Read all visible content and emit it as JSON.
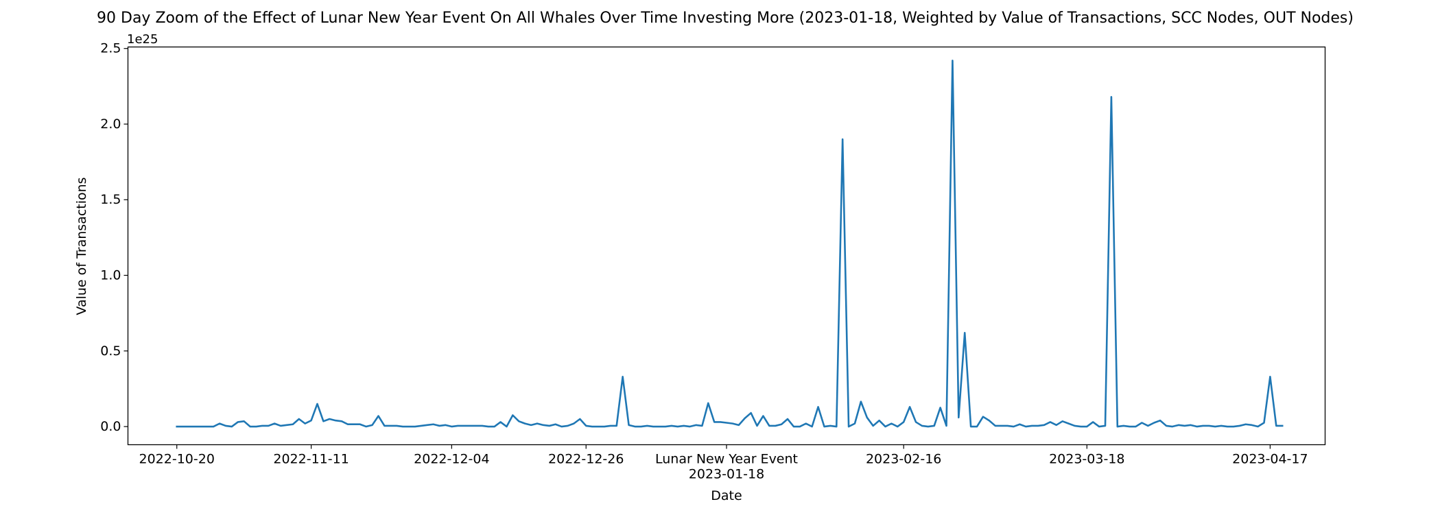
{
  "chart_data": {
    "type": "line",
    "title": "90 Day Zoom of the Effect of Lunar New Year Event On All Whales Over Time Investing More (2023-01-18, Weighted by Value of Transactions, SCC Nodes, OUT Nodes)",
    "xlabel": "Date",
    "ylabel": "Value of Transactions",
    "y_offset_label": "1e25",
    "y_scale": 1e+25,
    "xlim": [
      "2022-10-12",
      "2023-04-26"
    ],
    "ylim": [
      -0.12,
      2.51
    ],
    "x_ticks": [
      {
        "date": "2022-10-20",
        "label": "2022-10-20"
      },
      {
        "date": "2022-11-11",
        "label": "2022-11-11"
      },
      {
        "date": "2022-12-04",
        "label": "2022-12-04"
      },
      {
        "date": "2022-12-26",
        "label": "2022-12-26"
      },
      {
        "date": "2023-01-18",
        "label": "Lunar New Year Event",
        "sublabel": "2023-01-18"
      },
      {
        "date": "2023-02-16",
        "label": "2023-02-16"
      },
      {
        "date": "2023-03-18",
        "label": "2023-03-18"
      },
      {
        "date": "2023-04-17",
        "label": "2023-04-17"
      }
    ],
    "y_ticks": [
      0.0,
      0.5,
      1.0,
      1.5,
      2.0,
      2.5
    ],
    "y_tick_labels": [
      "0.0",
      "0.5",
      "1.0",
      "1.5",
      "2.0",
      "2.5"
    ],
    "grid": false,
    "color": "#1f77b4",
    "series": [
      {
        "start_date": "2022-10-20",
        "values": [
          0.0,
          0.0,
          0.0,
          0.0,
          0.0,
          0.0,
          0.0,
          0.02,
          0.005,
          0.0,
          0.03,
          0.035,
          0.0,
          0.0,
          0.005,
          0.005,
          0.02,
          0.005,
          0.01,
          0.015,
          0.05,
          0.02,
          0.04,
          0.15,
          0.035,
          0.05,
          0.04,
          0.035,
          0.015,
          0.015,
          0.015,
          0.0,
          0.01,
          0.07,
          0.005,
          0.005,
          0.005,
          0.0,
          0.0,
          0.0,
          0.005,
          0.01,
          0.015,
          0.005,
          0.01,
          0.0,
          0.005,
          0.005,
          0.005,
          0.005,
          0.005,
          0.0,
          0.0,
          0.03,
          0.0,
          0.075,
          0.035,
          0.02,
          0.01,
          0.02,
          0.01,
          0.005,
          0.015,
          0.0,
          0.005,
          0.02,
          0.05,
          0.005,
          0.0,
          0.0,
          0.0,
          0.005,
          0.005,
          0.33,
          0.01,
          0.0,
          0.0,
          0.005,
          0.0,
          0.0,
          0.0,
          0.005,
          0.0,
          0.005,
          0.0,
          0.01,
          0.005,
          0.155,
          0.03,
          0.03,
          0.025,
          0.02,
          0.01,
          0.055,
          0.09,
          0.005,
          0.07,
          0.005,
          0.005,
          0.015,
          0.05,
          0.0,
          0.0,
          0.02,
          0.0,
          0.13,
          0.0,
          0.005,
          0.0,
          1.9,
          0.0,
          0.02,
          0.165,
          0.06,
          0.005,
          0.04,
          0.0,
          0.02,
          0.0,
          0.03,
          0.13,
          0.03,
          0.005,
          0.0,
          0.005,
          0.125,
          0.005,
          2.42,
          0.06,
          0.62,
          0.0,
          0.0,
          0.065,
          0.04,
          0.005,
          0.005,
          0.005,
          0.0,
          0.015,
          0.0,
          0.005,
          0.005,
          0.01,
          0.03,
          0.01,
          0.035,
          0.02,
          0.005,
          0.0,
          0.0,
          0.03,
          0.0,
          0.005,
          2.18,
          0.0,
          0.005,
          0.0,
          0.0,
          0.025,
          0.005,
          0.025,
          0.04,
          0.005,
          0.0,
          0.01,
          0.005,
          0.01,
          0.0,
          0.005,
          0.005,
          0.0,
          0.005,
          0.0,
          0.0,
          0.005,
          0.015,
          0.01,
          0.0,
          0.025,
          0.33,
          0.005,
          0.005
        ]
      }
    ]
  }
}
